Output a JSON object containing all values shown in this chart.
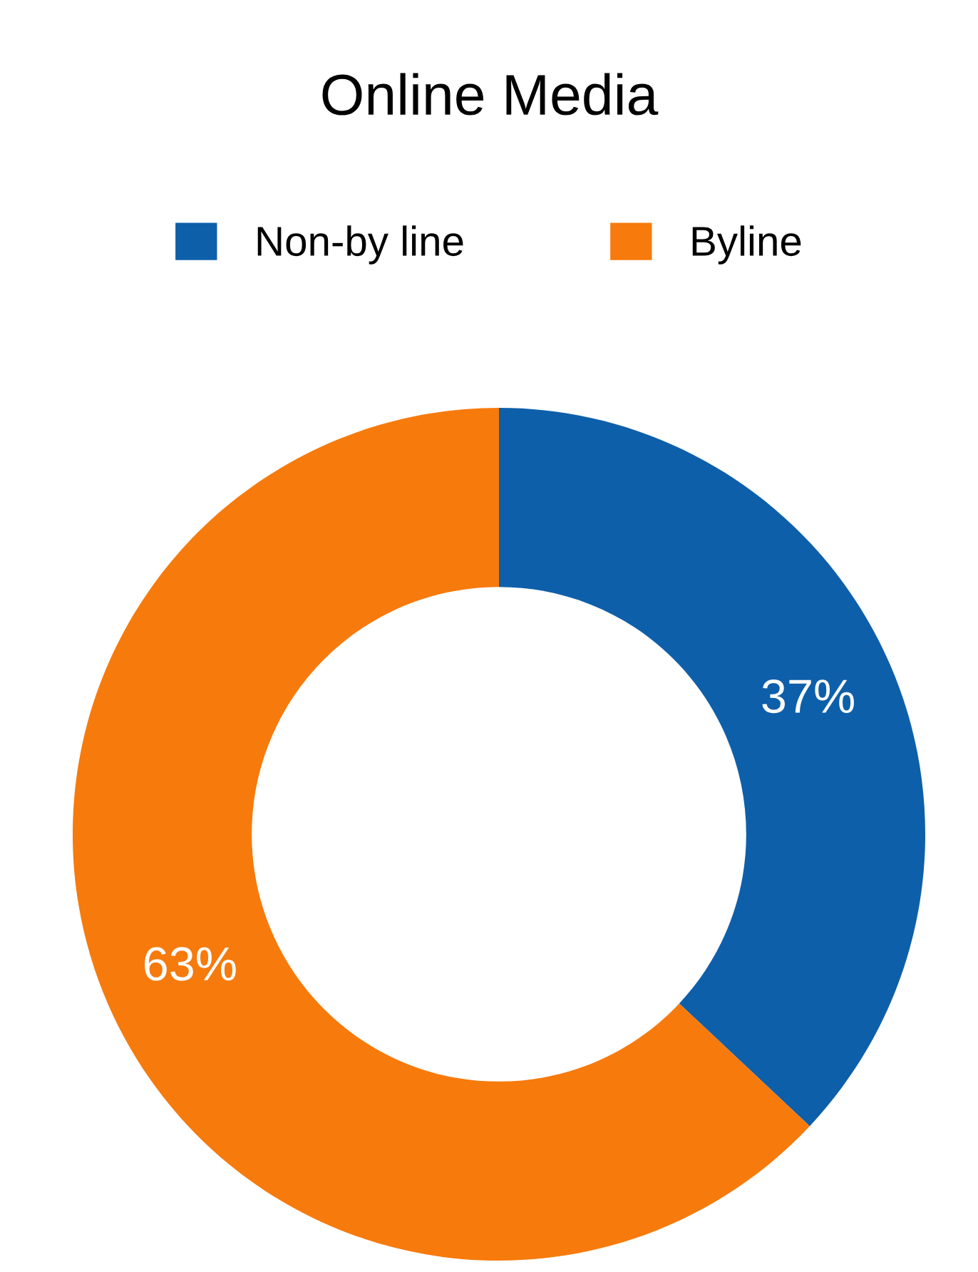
{
  "chart_data": {
    "type": "donut",
    "title": "Online Media",
    "categories": [
      "Non-by line",
      "Byline"
    ],
    "values": [
      37,
      63
    ],
    "colors": [
      "#0e5fa9",
      "#f77a0c"
    ],
    "value_labels": [
      "37%",
      "63%"
    ],
    "legend": "top"
  }
}
